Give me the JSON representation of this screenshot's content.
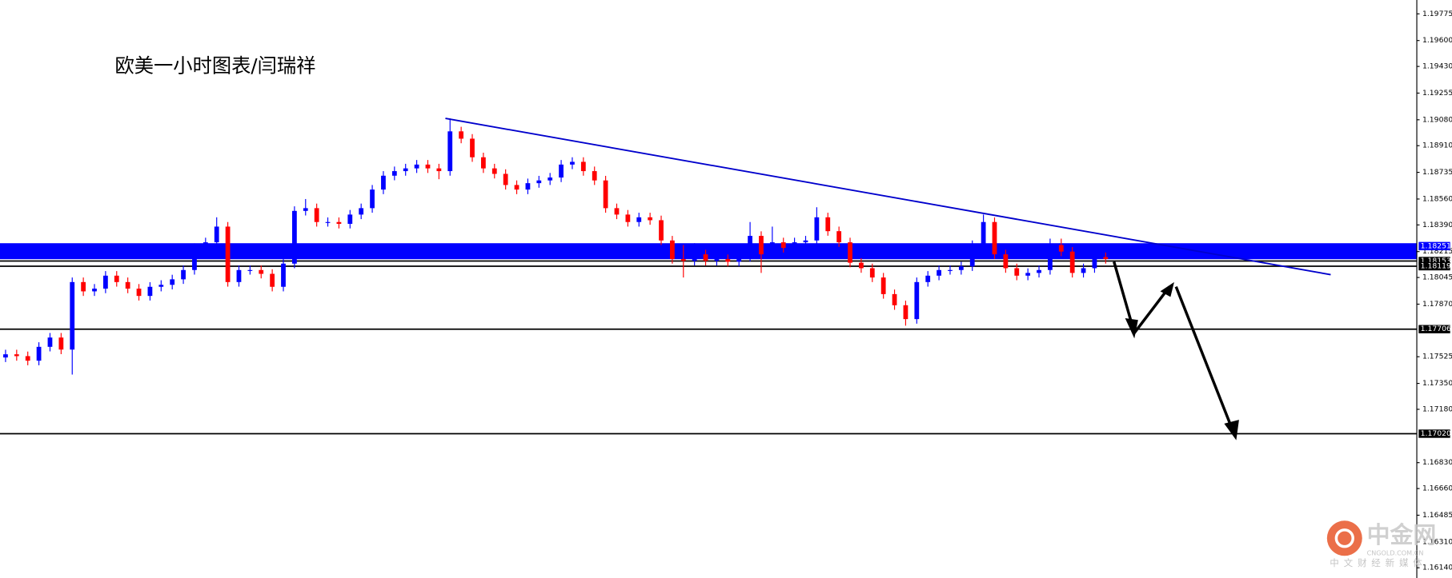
{
  "chart_data": {
    "type": "candlestick",
    "title": "欧美一小时图表/闫瑞祥",
    "ylim": [
      1.16073,
      1.19866
    ],
    "yticks": [
      {
        "value": 1.19775,
        "label": "1.19775"
      },
      {
        "value": 1.196,
        "label": "1.19600"
      },
      {
        "value": 1.1943,
        "label": "1.19430"
      },
      {
        "value": 1.19255,
        "label": "1.19255"
      },
      {
        "value": 1.1908,
        "label": "1.19080"
      },
      {
        "value": 1.1891,
        "label": "1.18910"
      },
      {
        "value": 1.18735,
        "label": "1.18735"
      },
      {
        "value": 1.1856,
        "label": "1.18560"
      },
      {
        "value": 1.1839,
        "label": "1.18390"
      },
      {
        "value": 1.18215,
        "label": "1.18215"
      },
      {
        "value": 1.18045,
        "label": "1.18045"
      },
      {
        "value": 1.1787,
        "label": "1.17870"
      },
      {
        "value": 1.17525,
        "label": "1.17525"
      },
      {
        "value": 1.1735,
        "label": "1.17350"
      },
      {
        "value": 1.1718,
        "label": "1.17180"
      },
      {
        "value": 1.1683,
        "label": "1.16830"
      },
      {
        "value": 1.1666,
        "label": "1.16660"
      },
      {
        "value": 1.16485,
        "label": "1.16485"
      },
      {
        "value": 1.1631,
        "label": "1.16310"
      },
      {
        "value": 1.1614,
        "label": "1.16140"
      }
    ],
    "up_color": "#0000ff",
    "down_color": "#ff0000",
    "zone": {
      "range": [
        1.18165,
        1.1827
      ],
      "color": "#0000ff"
    },
    "levels": [
      {
        "value": 1.18251,
        "label": "1.18251",
        "color": "#0000ff"
      },
      {
        "value": 1.18153,
        "label": "1.18153",
        "color": "#000000"
      },
      {
        "value": 1.18119,
        "label": "1.18119",
        "color": "#000000"
      },
      {
        "value": 1.17706,
        "label": "1.17706",
        "color": "#000000"
      },
      {
        "value": 1.1702,
        "label": "1.17020",
        "color": "#000000"
      }
    ],
    "candles": [
      [
        1.1752,
        1.17571,
        1.1749,
        1.17541
      ],
      [
        1.17541,
        1.17571,
        1.17499,
        1.17529
      ],
      [
        1.17529,
        1.17559,
        1.17469,
        1.17499
      ],
      [
        1.17499,
        1.1762,
        1.17469,
        1.1759
      ],
      [
        1.1759,
        1.17681,
        1.1756,
        1.17651
      ],
      [
        1.17651,
        1.17681,
        1.17542,
        1.17572
      ],
      [
        1.17572,
        1.18045,
        1.17408,
        1.18015
      ],
      [
        1.18015,
        1.18045,
        1.17924,
        1.17954
      ],
      [
        1.17954,
        1.18002,
        1.17924,
        1.17972
      ],
      [
        1.17972,
        1.18087,
        1.17942,
        1.18057
      ],
      [
        1.18057,
        1.18087,
        1.17985,
        1.18015
      ],
      [
        1.18015,
        1.18045,
        1.17942,
        1.17972
      ],
      [
        1.17972,
        1.18002,
        1.17894,
        1.17924
      ],
      [
        1.17924,
        1.18014,
        1.17894,
        1.17984
      ],
      [
        1.17984,
        1.18027,
        1.17954,
        1.17997
      ],
      [
        1.17997,
        1.18063,
        1.17967,
        1.18033
      ],
      [
        1.18033,
        1.18124,
        1.18003,
        1.18094
      ],
      [
        1.18094,
        1.18269,
        1.18064,
        1.18239
      ],
      [
        1.18239,
        1.18306,
        1.18209,
        1.18276
      ],
      [
        1.18276,
        1.1844,
        1.18246,
        1.18379
      ],
      [
        1.18379,
        1.18409,
        1.17985,
        1.18015
      ],
      [
        1.18015,
        1.18124,
        1.17985,
        1.18094
      ],
      [
        1.18094,
        1.18124,
        1.18064,
        1.18094
      ],
      [
        1.18094,
        1.18124,
        1.18039,
        1.18069
      ],
      [
        1.18069,
        1.18099,
        1.17954,
        1.17984
      ],
      [
        1.17984,
        1.18166,
        1.17954,
        1.18136
      ],
      [
        1.18136,
        1.18512,
        1.18106,
        1.18482
      ],
      [
        1.18482,
        1.1856,
        1.18452,
        1.185
      ],
      [
        1.185,
        1.1853,
        1.18379,
        1.18409
      ],
      [
        1.18409,
        1.18439,
        1.18379,
        1.18409
      ],
      [
        1.18409,
        1.18439,
        1.18367,
        1.18397
      ],
      [
        1.18397,
        1.18488,
        1.18367,
        1.18458
      ],
      [
        1.18458,
        1.1853,
        1.18428,
        1.185
      ],
      [
        1.185,
        1.18652,
        1.1847,
        1.18622
      ],
      [
        1.18622,
        1.18743,
        1.18592,
        1.18713
      ],
      [
        1.18713,
        1.18773,
        1.18683,
        1.18743
      ],
      [
        1.18743,
        1.18791,
        1.18713,
        1.18761
      ],
      [
        1.18761,
        1.18816,
        1.18731,
        1.18786
      ],
      [
        1.18786,
        1.18816,
        1.18731,
        1.18761
      ],
      [
        1.18761,
        1.18791,
        1.1869,
        1.18743
      ],
      [
        1.18743,
        1.19089,
        1.18713,
        1.19004
      ],
      [
        1.19004,
        1.19034,
        1.18926,
        1.18956
      ],
      [
        1.18956,
        1.18986,
        1.18804,
        1.18834
      ],
      [
        1.18834,
        1.18864,
        1.18731,
        1.18761
      ],
      [
        1.18761,
        1.18791,
        1.18695,
        1.18725
      ],
      [
        1.18725,
        1.18755,
        1.18622,
        1.18652
      ],
      [
        1.18652,
        1.18682,
        1.18592,
        1.18622
      ],
      [
        1.18622,
        1.18694,
        1.18592,
        1.18664
      ],
      [
        1.18664,
        1.18712,
        1.18634,
        1.18682
      ],
      [
        1.18682,
        1.18731,
        1.18652,
        1.18701
      ],
      [
        1.18701,
        1.18816,
        1.18671,
        1.18786
      ],
      [
        1.18786,
        1.18834,
        1.18756,
        1.18804
      ],
      [
        1.18804,
        1.18834,
        1.18713,
        1.18743
      ],
      [
        1.18743,
        1.18773,
        1.18652,
        1.18682
      ],
      [
        1.18682,
        1.18712,
        1.1847,
        1.185
      ],
      [
        1.185,
        1.1853,
        1.18428,
        1.18458
      ],
      [
        1.18458,
        1.18488,
        1.18379,
        1.18409
      ],
      [
        1.18409,
        1.1847,
        1.18379,
        1.1844
      ],
      [
        1.1844,
        1.1847,
        1.18391,
        1.18421
      ],
      [
        1.18421,
        1.18451,
        1.18258,
        1.18288
      ],
      [
        1.18288,
        1.18318,
        1.18136,
        1.18166
      ],
      [
        1.18166,
        1.18258,
        1.18045,
        1.18154
      ],
      [
        1.18154,
        1.1827,
        1.18124,
        1.18197
      ],
      [
        1.18197,
        1.18227,
        1.18124,
        1.18154
      ],
      [
        1.18154,
        1.18196,
        1.18124,
        1.18166
      ],
      [
        1.18166,
        1.18196,
        1.18118,
        1.18148
      ],
      [
        1.18148,
        1.18209,
        1.18118,
        1.18179
      ],
      [
        1.18179,
        1.18409,
        1.18149,
        1.18318
      ],
      [
        1.18318,
        1.18348,
        1.18075,
        1.18197
      ],
      [
        1.18197,
        1.18379,
        1.18167,
        1.18276
      ],
      [
        1.18276,
        1.18306,
        1.18209,
        1.18239
      ],
      [
        1.18239,
        1.18306,
        1.18209,
        1.18276
      ],
      [
        1.18276,
        1.18318,
        1.18246,
        1.18288
      ],
      [
        1.18288,
        1.18506,
        1.18258,
        1.1844
      ],
      [
        1.1844,
        1.1847,
        1.18319,
        1.18349
      ],
      [
        1.18349,
        1.18379,
        1.18246,
        1.18276
      ],
      [
        1.18276,
        1.18306,
        1.18112,
        1.18142
      ],
      [
        1.18142,
        1.18172,
        1.18076,
        1.18106
      ],
      [
        1.18106,
        1.18136,
        1.18015,
        1.18045
      ],
      [
        1.18045,
        1.18075,
        1.17906,
        1.17936
      ],
      [
        1.17936,
        1.17966,
        1.17833,
        1.17863
      ],
      [
        1.17863,
        1.17893,
        1.17729,
        1.17772
      ],
      [
        1.17772,
        1.18045,
        1.17742,
        1.18015
      ],
      [
        1.18015,
        1.18087,
        1.17985,
        1.18057
      ],
      [
        1.18057,
        1.18124,
        1.18027,
        1.18094
      ],
      [
        1.18094,
        1.18124,
        1.18064,
        1.18094
      ],
      [
        1.18094,
        1.18148,
        1.18064,
        1.18118
      ],
      [
        1.18118,
        1.18288,
        1.18088,
        1.18258
      ],
      [
        1.18258,
        1.18458,
        1.18228,
        1.18409
      ],
      [
        1.18409,
        1.18439,
        1.18167,
        1.18197
      ],
      [
        1.18197,
        1.18227,
        1.18076,
        1.18106
      ],
      [
        1.18106,
        1.18136,
        1.18027,
        1.18057
      ],
      [
        1.18057,
        1.18105,
        1.18027,
        1.18075
      ],
      [
        1.18075,
        1.18124,
        1.18045,
        1.18094
      ],
      [
        1.18094,
        1.183,
        1.18064,
        1.18258
      ],
      [
        1.18258,
        1.183,
        1.18185,
        1.18215
      ],
      [
        1.18215,
        1.18245,
        1.18045,
        1.18075
      ],
      [
        1.18075,
        1.18136,
        1.18045,
        1.18106
      ],
      [
        1.18106,
        1.18209,
        1.18076,
        1.18179
      ],
      [
        1.18179,
        1.18209,
        1.18136,
        1.18166
      ]
    ]
  },
  "watermark": {
    "brand": "中金网",
    "site": "CNGOLD.COM.CN",
    "tagline": "中文财经新媒体"
  }
}
